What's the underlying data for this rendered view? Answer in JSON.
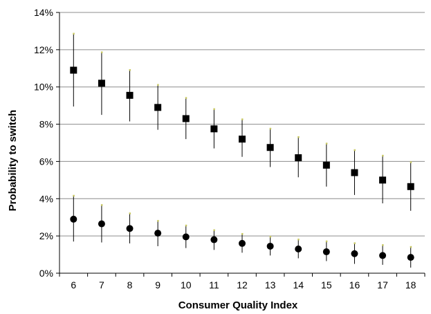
{
  "chart_data": {
    "type": "scatter",
    "title": "",
    "xlabel": "Consumer Quality Index",
    "ylabel": "Probability to switch",
    "categories": [
      "6",
      "7",
      "8",
      "9",
      "10",
      "11",
      "12",
      "13",
      "14",
      "15",
      "16",
      "17",
      "18"
    ],
    "y_ticks": [
      "0%",
      "2%",
      "4%",
      "6%",
      "8%",
      "10%",
      "12%",
      "14%"
    ],
    "ylim": [
      0,
      14
    ],
    "y_unit": "%",
    "grid": "horizontal",
    "legend": "none",
    "series": [
      {
        "marker": "square",
        "values": [
          10.9,
          10.2,
          9.55,
          8.9,
          8.3,
          7.75,
          7.2,
          6.75,
          6.2,
          5.8,
          5.4,
          5.0,
          4.65
        ],
        "upper": [
          12.85,
          11.85,
          10.9,
          10.1,
          9.4,
          8.8,
          8.25,
          7.75,
          7.3,
          6.95,
          6.6,
          6.3,
          5.95
        ],
        "lower": [
          8.95,
          8.5,
          8.15,
          7.7,
          7.2,
          6.7,
          6.25,
          5.7,
          5.15,
          4.65,
          4.2,
          3.75,
          3.35
        ]
      },
      {
        "marker": "circle",
        "values": [
          2.9,
          2.65,
          2.4,
          2.15,
          1.95,
          1.8,
          1.6,
          1.45,
          1.3,
          1.15,
          1.05,
          0.95,
          0.85
        ],
        "upper": [
          4.15,
          3.65,
          3.2,
          2.8,
          2.55,
          2.3,
          2.1,
          1.95,
          1.8,
          1.7,
          1.6,
          1.5,
          1.4
        ],
        "lower": [
          1.7,
          1.65,
          1.6,
          1.45,
          1.35,
          1.25,
          1.1,
          0.95,
          0.8,
          0.65,
          0.5,
          0.45,
          0.3
        ]
      }
    ],
    "colors": {
      "marker": "#000000",
      "gridline": "#8c8c8c",
      "errorbar_cap": "#c8c864"
    }
  }
}
